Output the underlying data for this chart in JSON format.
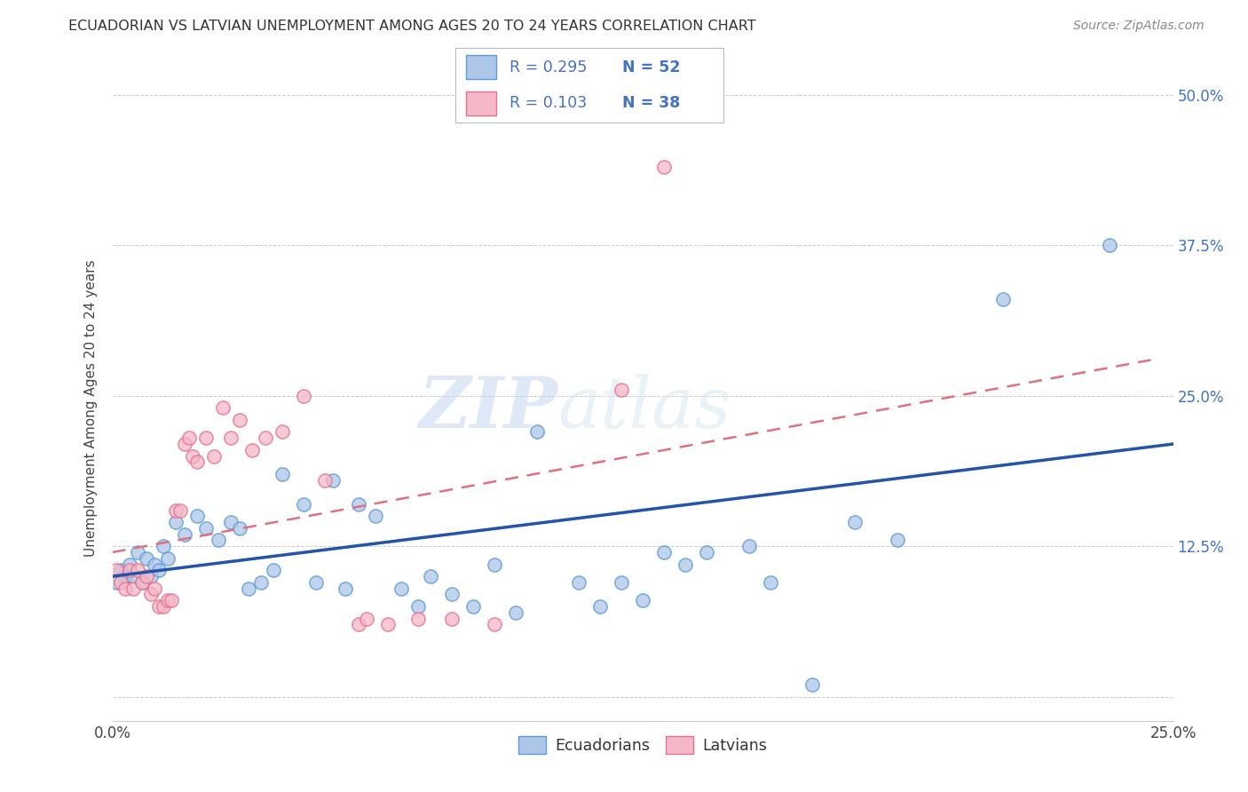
{
  "title": "ECUADORIAN VS LATVIAN UNEMPLOYMENT AMONG AGES 20 TO 24 YEARS CORRELATION CHART",
  "source": "Source: ZipAtlas.com",
  "ylabel": "Unemployment Among Ages 20 to 24 years",
  "xlim": [
    0.0,
    0.25
  ],
  "ylim": [
    -0.02,
    0.5
  ],
  "ecuadorians_color": "#aec6e8",
  "latvians_color": "#f4b8c8",
  "ecuadorians_edge_color": "#5b9bd5",
  "latvians_edge_color": "#e87090",
  "ecuadorians_line_color": "#2255aa",
  "latvians_line_color": "#e07080",
  "legend_color": "#4472c4",
  "watermark_zip": "ZIP",
  "watermark_atlas": "atlas",
  "ecuadorians_x": [
    0.001,
    0.002,
    0.003,
    0.004,
    0.005,
    0.006,
    0.007,
    0.008,
    0.009,
    0.01,
    0.011,
    0.012,
    0.013,
    0.015,
    0.017,
    0.02,
    0.022,
    0.025,
    0.028,
    0.03,
    0.032,
    0.035,
    0.038,
    0.04,
    0.045,
    0.048,
    0.052,
    0.055,
    0.058,
    0.062,
    0.068,
    0.072,
    0.075,
    0.08,
    0.085,
    0.09,
    0.095,
    0.1,
    0.11,
    0.115,
    0.12,
    0.125,
    0.13,
    0.135,
    0.14,
    0.15,
    0.155,
    0.165,
    0.175,
    0.185,
    0.21,
    0.235
  ],
  "ecuadorians_y": [
    0.095,
    0.105,
    0.1,
    0.11,
    0.1,
    0.12,
    0.095,
    0.115,
    0.1,
    0.11,
    0.105,
    0.125,
    0.115,
    0.145,
    0.135,
    0.15,
    0.14,
    0.13,
    0.145,
    0.14,
    0.09,
    0.095,
    0.105,
    0.185,
    0.16,
    0.095,
    0.18,
    0.09,
    0.16,
    0.15,
    0.09,
    0.075,
    0.1,
    0.085,
    0.075,
    0.11,
    0.07,
    0.22,
    0.095,
    0.075,
    0.095,
    0.08,
    0.12,
    0.11,
    0.12,
    0.125,
    0.095,
    0.01,
    0.145,
    0.13,
    0.33,
    0.375
  ],
  "latvians_x": [
    0.001,
    0.002,
    0.003,
    0.004,
    0.005,
    0.006,
    0.007,
    0.008,
    0.009,
    0.01,
    0.011,
    0.012,
    0.013,
    0.014,
    0.015,
    0.016,
    0.017,
    0.018,
    0.019,
    0.02,
    0.022,
    0.024,
    0.026,
    0.028,
    0.03,
    0.033,
    0.036,
    0.04,
    0.045,
    0.05,
    0.058,
    0.06,
    0.065,
    0.072,
    0.08,
    0.09,
    0.12,
    0.13
  ],
  "latvians_y": [
    0.105,
    0.095,
    0.09,
    0.105,
    0.09,
    0.105,
    0.095,
    0.1,
    0.085,
    0.09,
    0.075,
    0.075,
    0.08,
    0.08,
    0.155,
    0.155,
    0.21,
    0.215,
    0.2,
    0.195,
    0.215,
    0.2,
    0.24,
    0.215,
    0.23,
    0.205,
    0.215,
    0.22,
    0.25,
    0.18,
    0.06,
    0.065,
    0.06,
    0.065,
    0.065,
    0.06,
    0.255,
    0.44
  ],
  "ec_line_x0": 0.0,
  "ec_line_x1": 0.25,
  "ec_line_y0": 0.1,
  "ec_line_y1": 0.21,
  "lv_line_x0": 0.0,
  "lv_line_x1": 0.245,
  "lv_line_y0": 0.12,
  "lv_line_y1": 0.28
}
